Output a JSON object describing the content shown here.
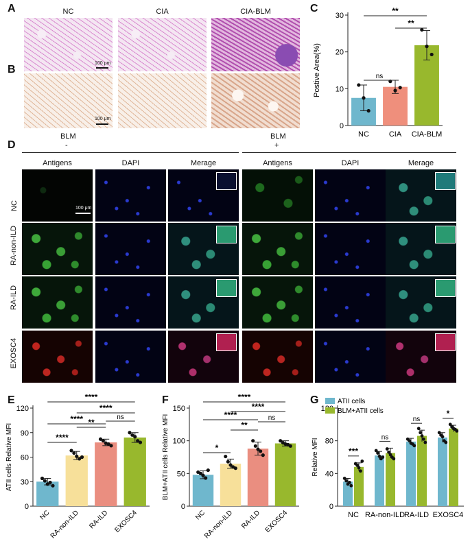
{
  "panel_letters": {
    "a": "A",
    "b": "B",
    "c": "C",
    "d": "D",
    "e": "E",
    "f": "F",
    "g": "G"
  },
  "top_group_labels": [
    "NC",
    "CIA",
    "CIA-BLM"
  ],
  "scale_label": "100 μm",
  "d_headers": {
    "blm_minus_title": "BLM",
    "blm_minus_sign": "-",
    "blm_plus_title": "BLM",
    "blm_plus_sign": "+",
    "columns": [
      "Antigens",
      "DAPI",
      "Merage",
      "Antigens",
      "DAPI",
      "Merage"
    ],
    "rows": [
      "NC",
      "RA-non-ILD",
      "RA-ILD",
      "EXOSC4"
    ]
  },
  "colors": {
    "nc_blue": "#6fb7cd",
    "yellow": "#f7e09a",
    "salmon": "#ea8e80",
    "green": "#98b82d",
    "c_salmon": "#ef8f7c"
  },
  "chart_data": [
    {
      "id": "C",
      "type": "bar",
      "categories": [
        "NC",
        "CIA",
        "CIA-BLM"
      ],
      "values": [
        7.5,
        10.5,
        21.8
      ],
      "errors": [
        3.5,
        1.8,
        4.0
      ],
      "points": [
        [
          11,
          7.5,
          4
        ],
        [
          12,
          9.5,
          10.3
        ],
        [
          26,
          21.5,
          19.3
        ]
      ],
      "ylabel": "Postive Area(%)",
      "ylim": [
        0,
        30
      ],
      "yticks": [
        0,
        10,
        20,
        30
      ],
      "significance": [
        {
          "from": 0,
          "to": 1,
          "label": "ns"
        },
        {
          "from": 0,
          "to": 2,
          "label": "**"
        },
        {
          "from": 1,
          "to": 2,
          "label": "**"
        }
      ]
    },
    {
      "id": "E",
      "type": "bar",
      "categories": [
        "NC",
        "RA-non-ILD",
        "RA-ILD",
        "EXOSC4"
      ],
      "values": [
        30,
        62,
        78,
        84
      ],
      "errors": [
        4,
        5,
        4,
        6
      ],
      "points": [
        [
          34,
          31,
          27,
          29,
          25
        ],
        [
          68,
          65,
          61,
          58,
          60
        ],
        [
          82,
          80,
          77,
          76,
          74
        ],
        [
          90,
          87,
          85,
          80,
          78
        ]
      ],
      "ylabel": "ATII cells Relative MFI",
      "ylim": [
        0,
        120
      ],
      "yticks": [
        0,
        30,
        60,
        90,
        120
      ],
      "significance": [
        {
          "from": 0,
          "to": 1,
          "label": "****"
        },
        {
          "from": 1,
          "to": 2,
          "label": "**"
        },
        {
          "from": 0,
          "to": 2,
          "label": "****"
        },
        {
          "from": 2,
          "to": 3,
          "label": "ns"
        },
        {
          "from": 1,
          "to": 3,
          "label": "****"
        },
        {
          "from": 0,
          "to": 3,
          "label": "****"
        }
      ]
    },
    {
      "id": "F",
      "type": "bar",
      "categories": [
        "NC",
        "RA-non-ILD",
        "RA-ILD",
        "EXOSC4"
      ],
      "values": [
        48,
        65,
        88,
        96
      ],
      "errors": [
        6,
        7,
        10,
        4
      ],
      "points": [
        [
          52,
          50,
          47,
          43,
          55
        ],
        [
          76,
          68,
          63,
          60,
          58
        ],
        [
          100,
          92,
          87,
          84,
          78
        ],
        [
          100,
          97,
          95,
          94,
          92
        ]
      ],
      "ylabel": "BLM+ATII cells Relative MFI",
      "ylim": [
        0,
        150
      ],
      "yticks": [
        0,
        50,
        100,
        150
      ],
      "significance": [
        {
          "from": 0,
          "to": 1,
          "label": "*"
        },
        {
          "from": 1,
          "to": 2,
          "label": "**"
        },
        {
          "from": 0,
          "to": 2,
          "label": "****"
        },
        {
          "from": 2,
          "to": 3,
          "label": "ns"
        },
        {
          "from": 1,
          "to": 3,
          "label": "****"
        },
        {
          "from": 0,
          "to": 3,
          "label": "****"
        }
      ]
    },
    {
      "id": "G",
      "type": "bar",
      "categories": [
        "NC",
        "RA-non-ILD",
        "RA-ILD",
        "EXOSC4"
      ],
      "series": [
        {
          "name": "ATII cells",
          "values": [
            30,
            62,
            79,
            84
          ],
          "errors": [
            4,
            5,
            4,
            6
          ],
          "points": [
            [
              34,
              31,
              27,
              29,
              25
            ],
            [
              68,
              65,
              61,
              58,
              60
            ],
            [
              82,
              80,
              77,
              76,
              74
            ],
            [
              90,
              87,
              85,
              80,
              78
            ]
          ]
        },
        {
          "name": "BLM+ATII cells",
          "values": [
            48,
            65,
            86,
            95
          ],
          "errors": [
            5,
            6,
            7,
            4
          ],
          "points": [
            [
              52,
              50,
              47,
              43,
              55
            ],
            [
              70,
              66,
              63,
              60,
              58
            ],
            [
              95,
              90,
              86,
              82,
              78
            ],
            [
              100,
              97,
              95,
              94,
              92
            ]
          ]
        }
      ],
      "ylabel": "Relative MFI",
      "ylim": [
        0,
        120
      ],
      "yticks": [
        0,
        40,
        80,
        120
      ],
      "legend": "top-left",
      "significance_labels": [
        "***",
        "ns",
        "ns",
        "*"
      ]
    }
  ]
}
